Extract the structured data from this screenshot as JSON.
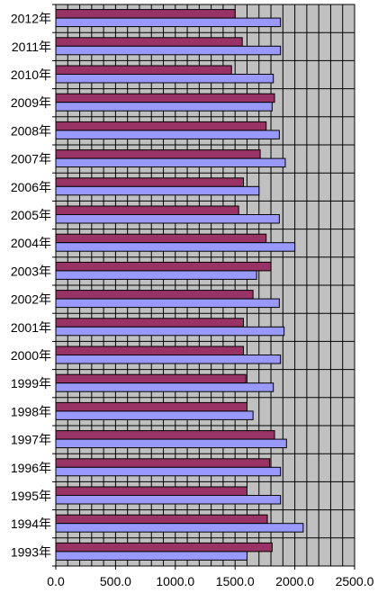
{
  "chart_data": {
    "type": "bar",
    "orientation": "horizontal",
    "categories": [
      "2012年",
      "2011年",
      "2010年",
      "2009年",
      "2008年",
      "2007年",
      "2006年",
      "2005年",
      "2004年",
      "2003年",
      "2002年",
      "2001年",
      "2000年",
      "1999年",
      "1998年",
      "1997年",
      "1996年",
      "1995年",
      "1994年",
      "1993年"
    ],
    "series": [
      {
        "color": "#993366",
        "values": [
          1500,
          1560,
          1470,
          1830,
          1760,
          1710,
          1570,
          1530,
          1760,
          1800,
          1650,
          1570,
          1570,
          1590,
          1600,
          1830,
          1790,
          1600,
          1770,
          1810
        ]
      },
      {
        "color": "#9999ff",
        "values": [
          1880,
          1880,
          1820,
          1810,
          1870,
          1920,
          1700,
          1870,
          2000,
          1680,
          1870,
          1910,
          1880,
          1820,
          1650,
          1930,
          1880,
          1880,
          2070,
          1600
        ]
      }
    ],
    "xlim": [
      0,
      2500
    ],
    "xticks": [
      "0.0",
      "500.0",
      "1000.0",
      "1500.0",
      "2000.0",
      "2500.0"
    ],
    "minor_step": 100,
    "plot_background": "#c0c0c0",
    "grid": true,
    "legend": false,
    "title": "",
    "xlabel": "",
    "ylabel": ""
  }
}
